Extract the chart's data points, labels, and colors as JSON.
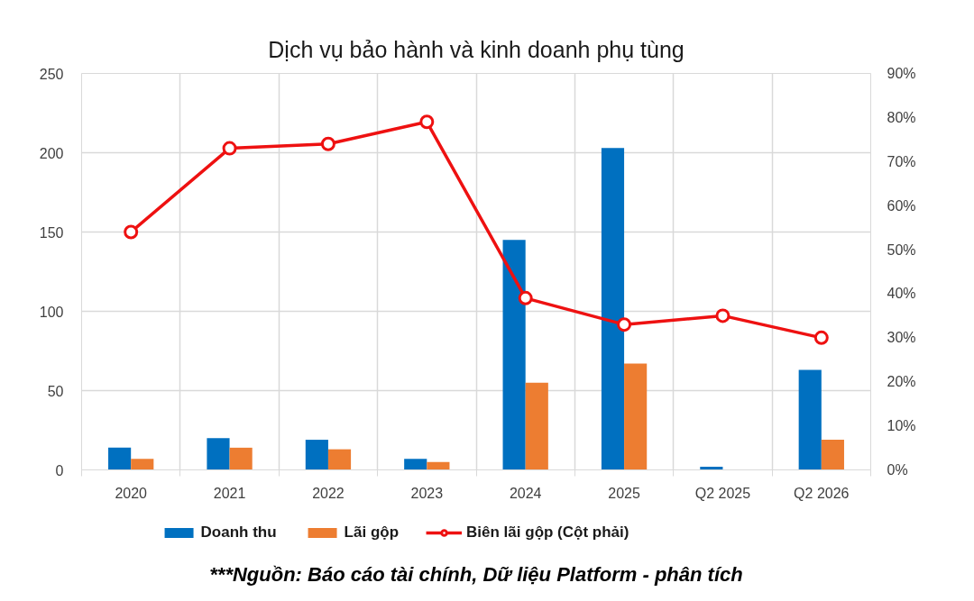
{
  "chart_data": {
    "type": "bar",
    "title": "Dịch vụ bảo hành và kinh doanh phụ tùng",
    "categories": [
      "2020",
      "2021",
      "2022",
      "2023",
      "2024",
      "2025",
      "Q2 2025",
      "Q2 2026"
    ],
    "series": [
      {
        "name": "Doanh thu",
        "color": "#0070c0",
        "values": [
          14,
          20,
          19,
          7,
          145,
          203,
          2,
          63
        ]
      },
      {
        "name": "Lãi gộp",
        "color": "#ed7d31",
        "values": [
          7,
          14,
          13,
          5,
          55,
          67,
          null,
          19
        ]
      },
      {
        "name": "Biên lãi gộp (Cột phải)",
        "type": "line",
        "axis": "y2",
        "color": "#ee1111",
        "marker": "circle",
        "line_style": "solid",
        "values": [
          54,
          73,
          74,
          79,
          39,
          33,
          35,
          30
        ]
      }
    ],
    "ylim": [
      0,
      250
    ],
    "yticks": [
      0,
      50,
      100,
      150,
      200,
      250
    ],
    "y2lim": [
      0,
      90
    ],
    "y2ticks": [
      {
        "value": 0,
        "label": "0%"
      },
      {
        "value": 10,
        "label": "10%"
      },
      {
        "value": 20,
        "label": "20%"
      },
      {
        "value": 30,
        "label": "30%"
      },
      {
        "value": 40,
        "label": "40%"
      },
      {
        "value": 50,
        "label": "50%"
      },
      {
        "value": 60,
        "label": "60%"
      },
      {
        "value": 70,
        "label": "70%"
      },
      {
        "value": 80,
        "label": "80%"
      },
      {
        "value": 90,
        "label": "90%"
      }
    ],
    "grid": true,
    "legend": "bottom",
    "annotations": [
      "***Nguồn: Báo cáo tài chính, Dữ liệu Platform - phân tích"
    ]
  }
}
